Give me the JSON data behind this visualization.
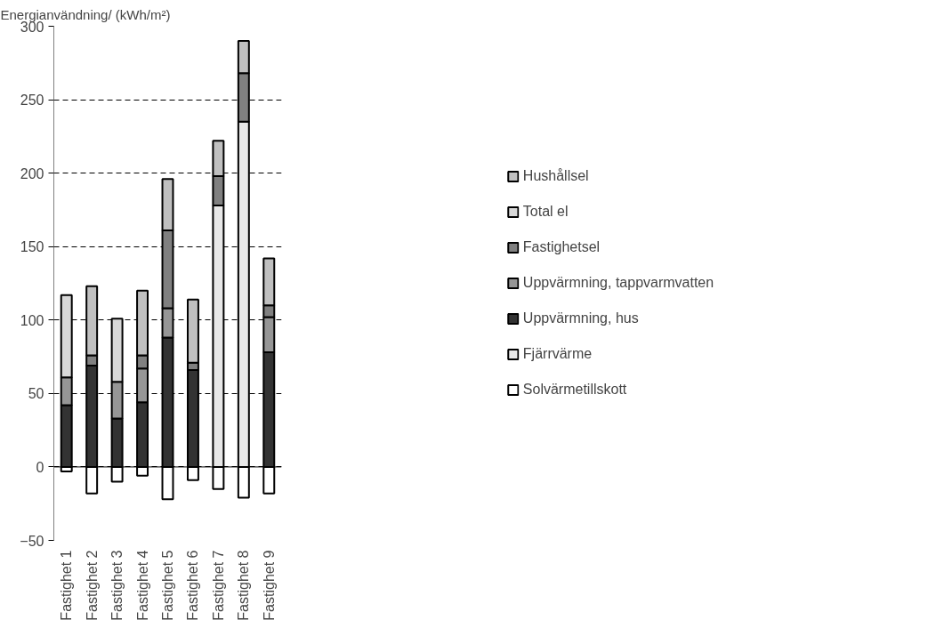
{
  "chart_data": {
    "type": "bar",
    "stacked": true,
    "ylabel": "Energianvändning/ (kWh/m²)",
    "categories": [
      "Fastighet 1",
      "Fastighet 2",
      "Fastighet 3",
      "Fastighet 4",
      "Fastighet 5",
      "Fastighet 6",
      "Fastighet 7",
      "Fastighet 8",
      "Fastighet 9"
    ],
    "series": [
      {
        "name": "Solvärmetillskott",
        "color": "#ffffff",
        "values": [
          -3,
          -18,
          -10,
          -6,
          -22,
          -9,
          -15,
          -21,
          -18
        ]
      },
      {
        "name": "Fjärrvärme",
        "color": "#e8e8e8",
        "values": [
          null,
          null,
          null,
          null,
          null,
          null,
          178,
          235,
          null
        ]
      },
      {
        "name": "Uppvärmning, hus",
        "color": "#333333",
        "values": [
          42,
          69,
          33,
          44,
          88,
          66,
          null,
          null,
          78
        ]
      },
      {
        "name": "Uppvärmning, tappvarmvatten",
        "color": "#969696",
        "values": [
          19,
          null,
          25,
          23,
          20,
          null,
          null,
          null,
          24
        ]
      },
      {
        "name": "Fastighetsel",
        "color": "#808080",
        "values": [
          null,
          7,
          null,
          9,
          53,
          5,
          20,
          33,
          8
        ]
      },
      {
        "name": "Total el",
        "color": "#d8d8d8",
        "values": [
          56,
          null,
          43,
          null,
          null,
          null,
          null,
          null,
          null
        ]
      },
      {
        "name": "Hushållsel",
        "color": "#c0c0c0",
        "values": [
          null,
          47,
          null,
          44,
          35,
          43,
          24,
          22,
          32
        ]
      }
    ],
    "ylim": [
      -50,
      300
    ],
    "yticks": [
      -50,
      0,
      50,
      100,
      150,
      200,
      250,
      300
    ],
    "grid": "y",
    "legend": "right"
  }
}
